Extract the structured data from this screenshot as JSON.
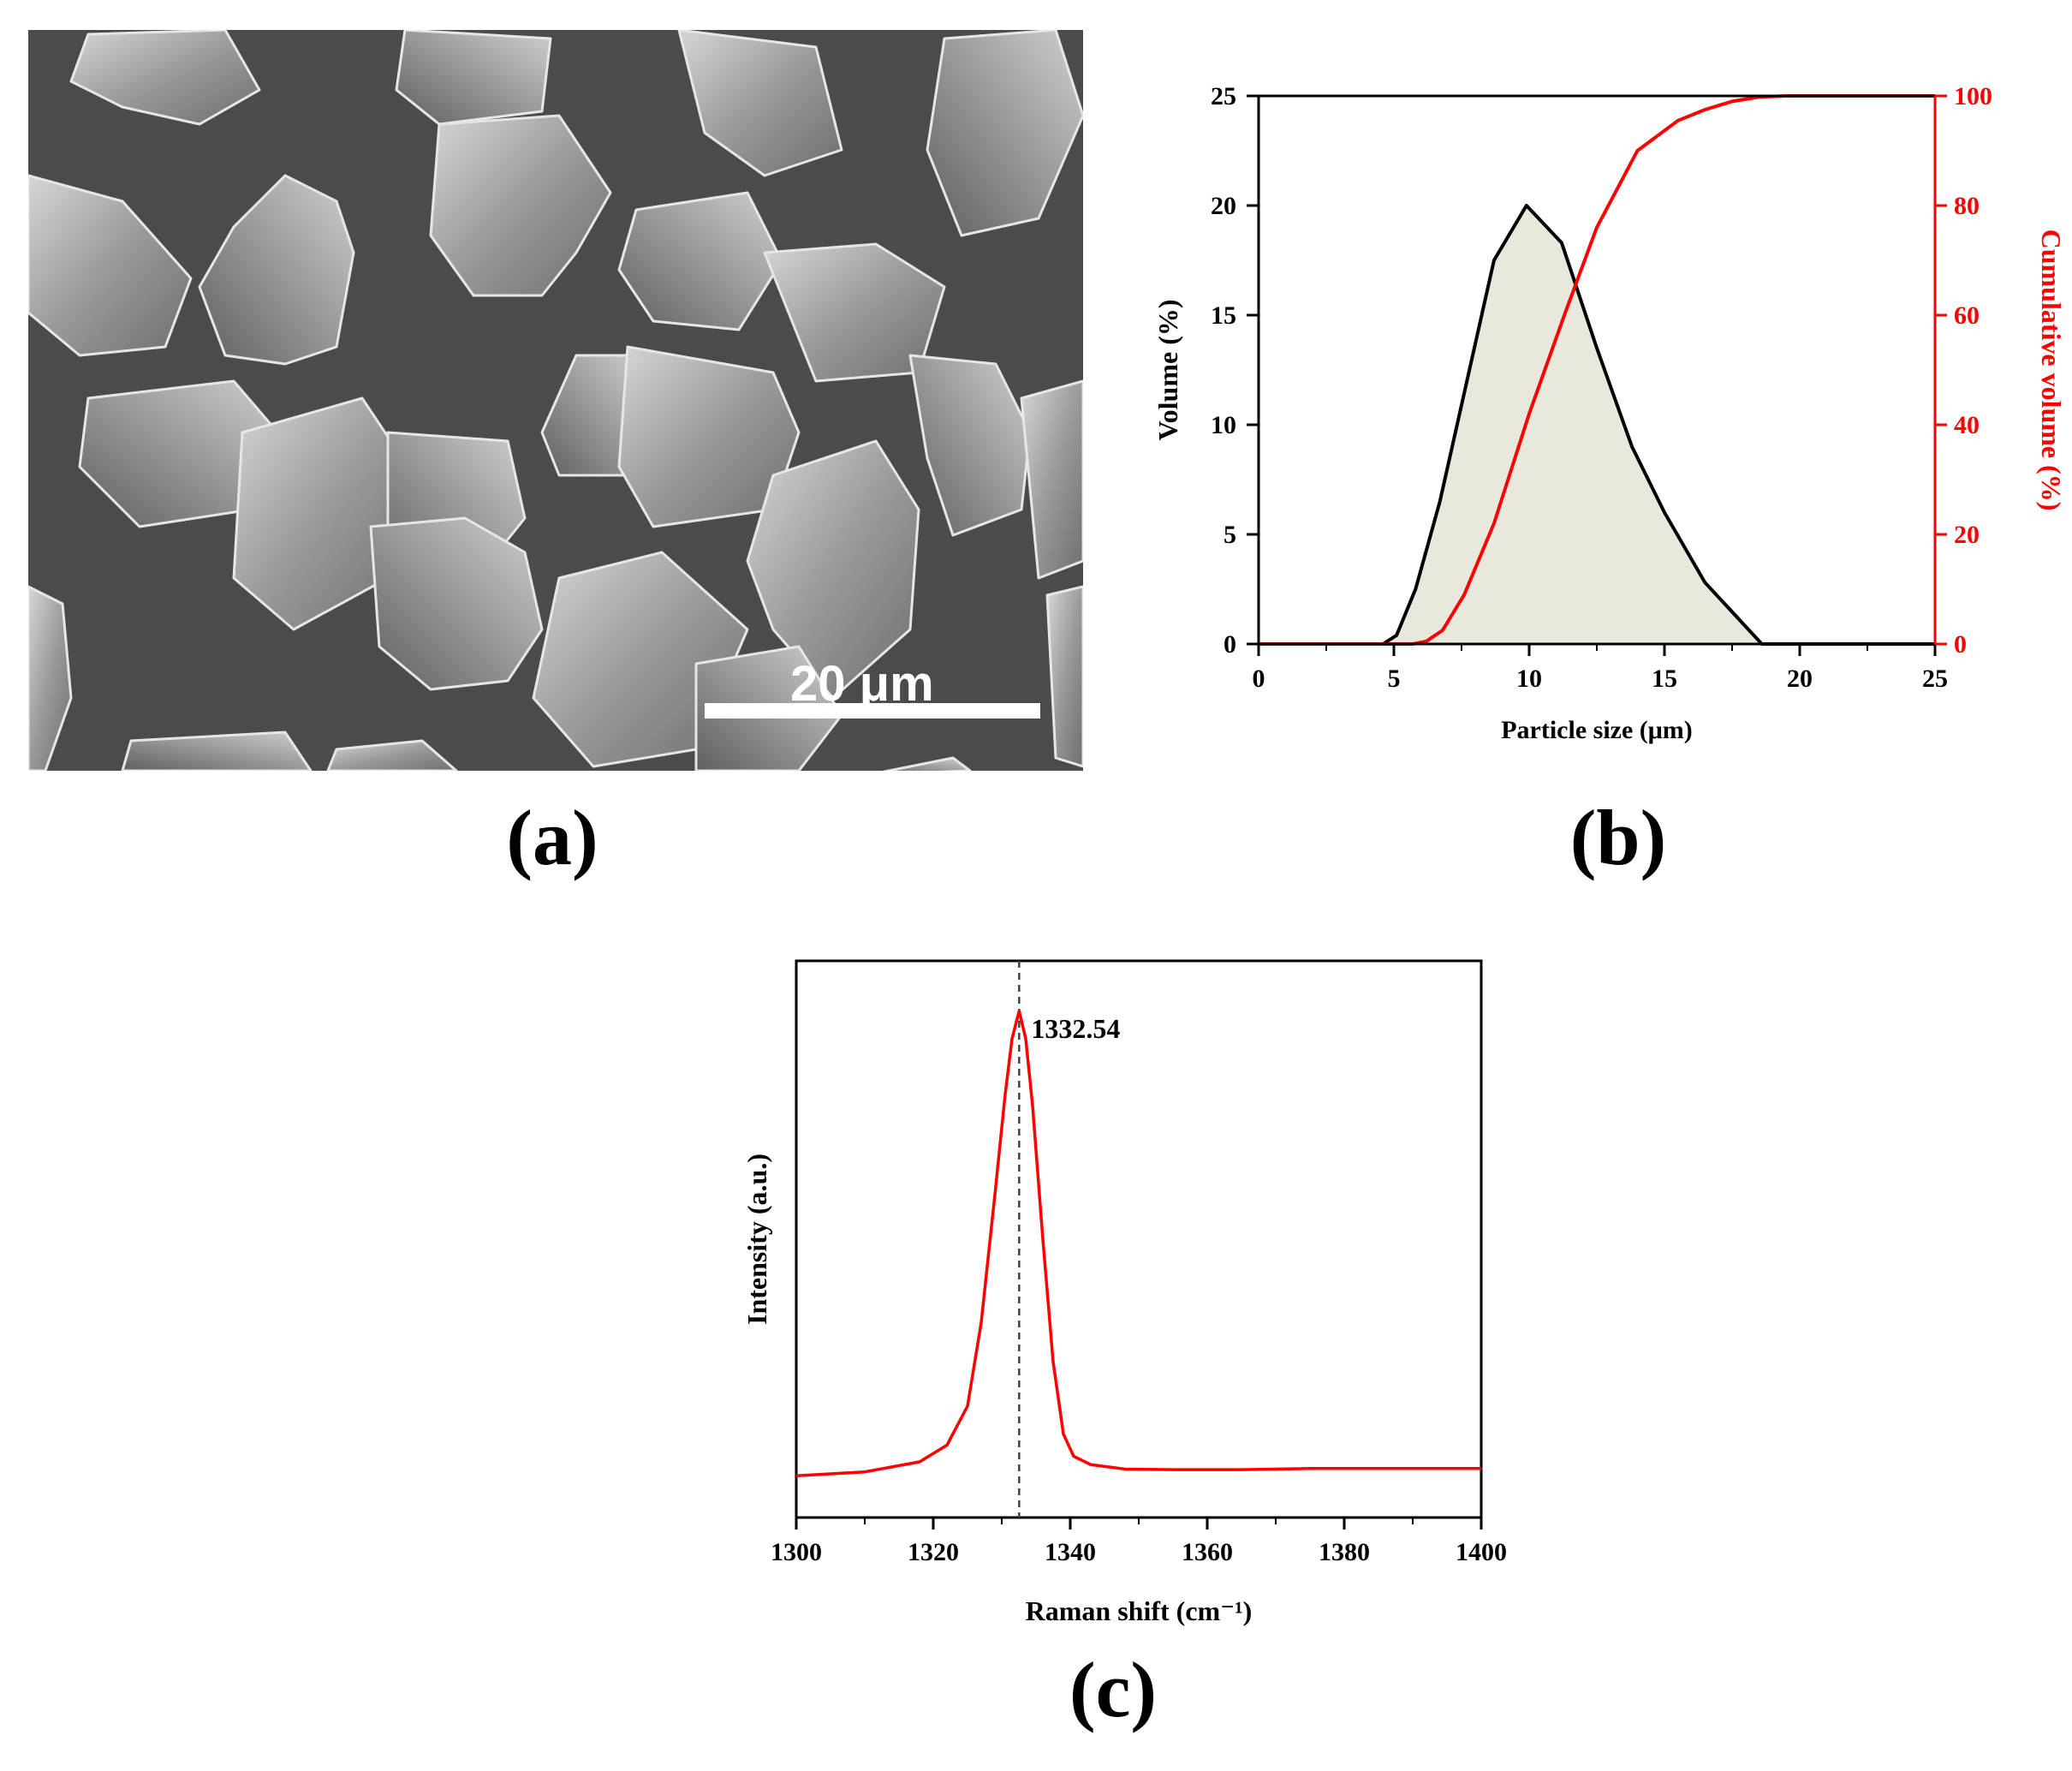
{
  "panels": {
    "a": {
      "label": "(a)",
      "scale_bar_text": "20 μm"
    },
    "b": {
      "label": "(b)"
    },
    "c": {
      "label": "(c)"
    }
  },
  "colors": {
    "black_series": "#000000",
    "red_series": "#ff0000",
    "fill": "#e8e8dc",
    "sem_bg": "#4b4b4b"
  },
  "chart_data": [
    {
      "type": "area",
      "xlabel": "Particle size (μm)",
      "ylabel": "Volume (%)",
      "y2label": "Cumulative volume (%)",
      "xlim": [
        0,
        25
      ],
      "ylim": [
        0,
        25
      ],
      "y2lim": [
        0,
        100
      ],
      "xticks": [
        0,
        5,
        10,
        15,
        20,
        25
      ],
      "yticks": [
        0,
        5,
        10,
        15,
        20,
        25
      ],
      "y2ticks": [
        0,
        20,
        40,
        60,
        80,
        100
      ],
      "series": [
        {
          "axis": "left",
          "color": "#000000",
          "x": [
            0,
            4.6,
            5.1,
            5.8,
            6.7,
            7.7,
            8.7,
            9.9,
            11.2,
            12.5,
            13.8,
            15.0,
            16.5,
            18.6,
            25
          ],
          "y": [
            0,
            0,
            0.4,
            2.5,
            6.5,
            12.0,
            17.5,
            20.0,
            18.3,
            13.5,
            9.0,
            6.0,
            2.8,
            0,
            0
          ]
        },
        {
          "axis": "right",
          "color": "#ff0000",
          "x": [
            0,
            5.7,
            6.2,
            6.8,
            7.6,
            8.7,
            10.0,
            11.3,
            12.5,
            14.0,
            15.5,
            16.5,
            17.5,
            18.5,
            19.5,
            25
          ],
          "y": [
            0,
            0,
            0.5,
            2.5,
            9,
            22,
            42,
            60,
            76,
            90,
            95.5,
            97.5,
            99,
            99.8,
            100,
            100
          ]
        }
      ]
    },
    {
      "type": "line",
      "xlabel": "Raman shift (cm⁻¹)",
      "ylabel": "Intensity (a.u.)",
      "xlim": [
        1300,
        1400
      ],
      "ylim": [
        0,
        1
      ],
      "xticks": [
        1300,
        1320,
        1340,
        1360,
        1380,
        1400
      ],
      "peak": {
        "x": 1332.54,
        "label": "1332.54"
      },
      "series": [
        {
          "color": "#ff0000",
          "x": [
            1300,
            1310,
            1318,
            1322,
            1325,
            1327,
            1329,
            1330.5,
            1331.5,
            1332.54,
            1333.5,
            1334.5,
            1336,
            1337.5,
            1339,
            1340.5,
            1343,
            1348,
            1355,
            1365,
            1375,
            1385,
            1400
          ],
          "y": [
            0.075,
            0.082,
            0.1,
            0.13,
            0.2,
            0.35,
            0.58,
            0.76,
            0.86,
            0.91,
            0.86,
            0.74,
            0.5,
            0.28,
            0.15,
            0.11,
            0.095,
            0.087,
            0.086,
            0.086,
            0.088,
            0.088,
            0.088
          ]
        }
      ]
    }
  ]
}
